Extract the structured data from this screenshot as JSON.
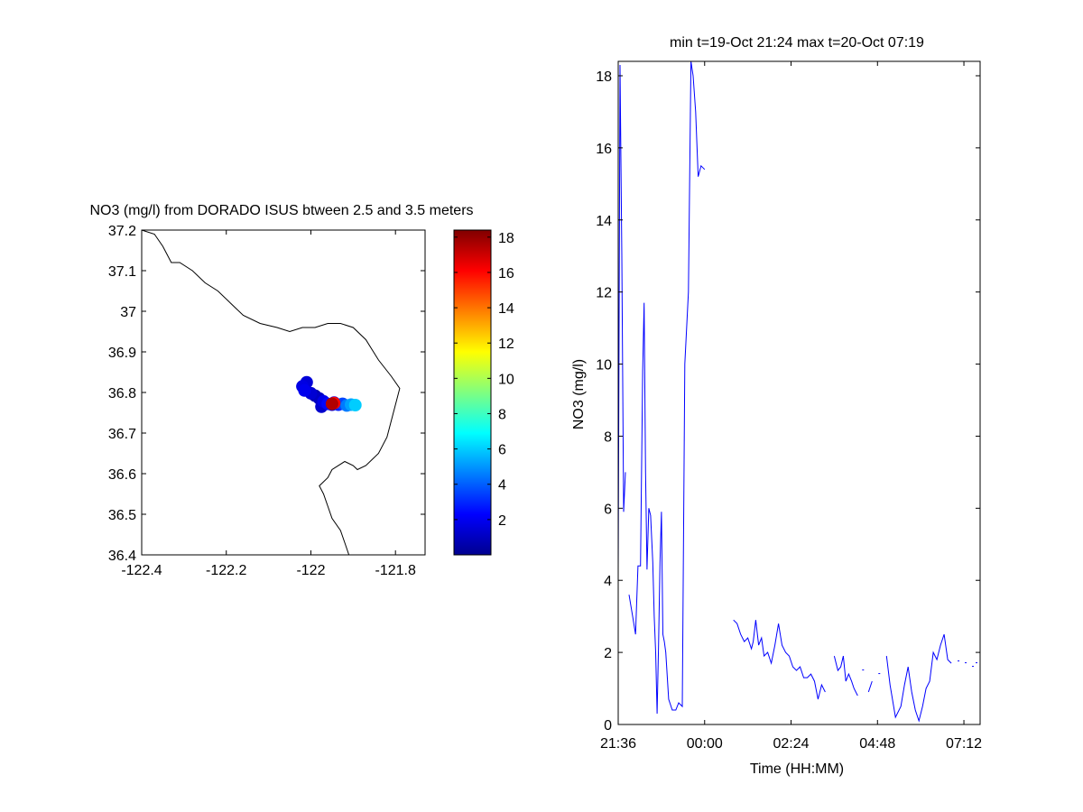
{
  "figure": {
    "background": "#ffffff",
    "axis_color": "#000000"
  },
  "chart_data": [
    {
      "type": "scatter",
      "title": "NO3 (mg/l) from DORADO ISUS btween 2.5 and 3.5 meters",
      "xlabel": "",
      "ylabel": "",
      "xlim": [
        -122.4,
        -121.73
      ],
      "ylim": [
        36.4,
        37.2
      ],
      "xticks": [
        -122.4,
        -122.2,
        -122,
        -121.8
      ],
      "xtick_labels": [
        "-122.4",
        "-122.2",
        "-122",
        "-121.8"
      ],
      "yticks": [
        36.4,
        36.5,
        36.6,
        36.7,
        36.8,
        36.9,
        37,
        37.1,
        37.2
      ],
      "ytick_labels": [
        "36.4",
        "36.5",
        "36.6",
        "36.7",
        "36.8",
        "36.9",
        "37",
        "37.1",
        "37.2"
      ],
      "coastline_color": "#000000",
      "coastline": [
        [
          -122.4,
          37.2
        ],
        [
          -122.37,
          37.19
        ],
        [
          -122.35,
          37.16
        ],
        [
          -122.34,
          37.14
        ],
        [
          -122.33,
          37.12
        ],
        [
          -122.31,
          37.12
        ],
        [
          -122.28,
          37.1
        ],
        [
          -122.25,
          37.07
        ],
        [
          -122.22,
          37.05
        ],
        [
          -122.19,
          37.02
        ],
        [
          -122.16,
          36.99
        ],
        [
          -122.12,
          36.97
        ],
        [
          -122.08,
          36.96
        ],
        [
          -122.05,
          36.95
        ],
        [
          -122.02,
          36.96
        ],
        [
          -121.99,
          36.96
        ],
        [
          -121.96,
          36.97
        ],
        [
          -121.93,
          36.97
        ],
        [
          -121.9,
          36.96
        ],
        [
          -121.87,
          36.93
        ],
        [
          -121.84,
          36.88
        ],
        [
          -121.81,
          36.84
        ],
        [
          -121.79,
          36.81
        ],
        [
          -121.8,
          36.77
        ],
        [
          -121.81,
          36.73
        ],
        [
          -121.82,
          36.69
        ],
        [
          -121.84,
          36.65
        ],
        [
          -121.87,
          36.62
        ],
        [
          -121.89,
          36.61
        ],
        [
          -121.9,
          36.62
        ],
        [
          -121.92,
          36.63
        ],
        [
          -121.95,
          36.61
        ],
        [
          -121.96,
          36.59
        ],
        [
          -121.98,
          36.57
        ],
        [
          -121.97,
          36.55
        ],
        [
          -121.96,
          36.52
        ],
        [
          -121.95,
          36.49
        ],
        [
          -121.93,
          36.46
        ],
        [
          -121.92,
          36.43
        ],
        [
          -121.91,
          36.4
        ]
      ],
      "color_scale": "jet",
      "colorbar": {
        "min": 0,
        "max": 18.4,
        "ticks": [
          2,
          4,
          6,
          8,
          10,
          12,
          14,
          16,
          18
        ],
        "tick_labels": [
          "2",
          "4",
          "6",
          "8",
          "10",
          "12",
          "14",
          "16",
          "18"
        ]
      },
      "points": [
        {
          "x": -122.01,
          "y": 36.825,
          "v": 1.6
        },
        {
          "x": -122.02,
          "y": 36.815,
          "v": 1.8
        },
        {
          "x": -122.015,
          "y": 36.805,
          "v": 2.0
        },
        {
          "x": -122.0,
          "y": 36.798,
          "v": 1.5
        },
        {
          "x": -121.99,
          "y": 36.792,
          "v": 0.8
        },
        {
          "x": -121.98,
          "y": 36.785,
          "v": 1.2
        },
        {
          "x": -121.97,
          "y": 36.778,
          "v": 1.9
        },
        {
          "x": -121.975,
          "y": 36.765,
          "v": 1.4
        },
        {
          "x": -121.96,
          "y": 36.772,
          "v": 2.4
        },
        {
          "x": -121.95,
          "y": 36.77,
          "v": 1.6
        },
        {
          "x": -121.945,
          "y": 36.775,
          "v": 2.2
        },
        {
          "x": -121.935,
          "y": 36.77,
          "v": 2.8
        },
        {
          "x": -121.925,
          "y": 36.772,
          "v": 3.5
        },
        {
          "x": -121.915,
          "y": 36.768,
          "v": 4.5
        },
        {
          "x": -121.905,
          "y": 36.77,
          "v": 5.2
        },
        {
          "x": -121.895,
          "y": 36.769,
          "v": 6.0
        },
        {
          "x": -121.95,
          "y": 36.772,
          "v": 17.5
        },
        {
          "x": -121.945,
          "y": 36.774,
          "v": 16.0
        }
      ]
    },
    {
      "type": "line",
      "title": "min t=19-Oct 21:24 max t=20-Oct 07:19",
      "xlabel": "Time (HH:MM)",
      "ylabel": "NO3 (mg/l)",
      "xlim": [
        -2.4,
        7.65
      ],
      "ylim": [
        0,
        18.4
      ],
      "xticks": [
        -2.4,
        0,
        2.4,
        4.8,
        7.2
      ],
      "xtick_labels": [
        "21:36",
        "00:00",
        "02:24",
        "04:48",
        "07:12"
      ],
      "yticks": [
        0,
        2,
        4,
        6,
        8,
        10,
        12,
        14,
        16,
        18
      ],
      "ytick_labels": [
        "0",
        "2",
        "4",
        "6",
        "8",
        "10",
        "12",
        "14",
        "16",
        "18"
      ],
      "series_color": "#0000ff",
      "segments": [
        [
          [
            -2.6,
            2.0
          ],
          [
            -2.52,
            1.9
          ],
          [
            -2.45,
            1.6
          ],
          [
            -2.4,
            4.3
          ],
          [
            -2.35,
            18.3
          ],
          [
            -2.3,
            13.0
          ],
          [
            -2.25,
            5.9
          ],
          [
            -2.2,
            7.0
          ]
        ],
        [
          [
            -2.1,
            3.6
          ],
          [
            -2.0,
            3.0
          ],
          [
            -1.92,
            2.5
          ],
          [
            -1.85,
            4.4
          ],
          [
            -1.78,
            4.4
          ],
          [
            -1.72,
            9.8
          ],
          [
            -1.68,
            11.7
          ],
          [
            -1.64,
            7.0
          ],
          [
            -1.6,
            4.3
          ],
          [
            -1.55,
            6.0
          ],
          [
            -1.5,
            5.8
          ],
          [
            -1.44,
            4.5
          ],
          [
            -1.4,
            3.0
          ],
          [
            -1.36,
            2.0
          ],
          [
            -1.32,
            0.3
          ],
          [
            -1.28,
            2.2
          ],
          [
            -1.24,
            4.5
          ],
          [
            -1.2,
            5.9
          ],
          [
            -1.16,
            2.5
          ],
          [
            -1.12,
            2.3
          ],
          [
            -1.08,
            2.0
          ],
          [
            -1.0,
            0.7
          ],
          [
            -0.9,
            0.4
          ],
          [
            -0.8,
            0.4
          ],
          [
            -0.72,
            0.6
          ],
          [
            -0.62,
            0.5
          ],
          [
            -0.55,
            10.0
          ],
          [
            -0.45,
            12.0
          ],
          [
            -0.38,
            18.4
          ],
          [
            -0.32,
            18.0
          ],
          [
            -0.25,
            17.0
          ],
          [
            -0.18,
            15.2
          ],
          [
            -0.1,
            15.5
          ],
          [
            0.0,
            15.4
          ]
        ],
        [
          [
            0.8,
            2.9
          ],
          [
            0.9,
            2.8
          ],
          [
            1.0,
            2.5
          ],
          [
            1.1,
            2.3
          ],
          [
            1.2,
            2.4
          ],
          [
            1.3,
            2.1
          ],
          [
            1.35,
            2.3
          ],
          [
            1.42,
            2.9
          ],
          [
            1.5,
            2.2
          ],
          [
            1.58,
            2.4
          ],
          [
            1.65,
            1.9
          ],
          [
            1.75,
            2.0
          ],
          [
            1.85,
            1.7
          ],
          [
            1.95,
            2.2
          ],
          [
            2.05,
            2.8
          ],
          [
            2.15,
            2.2
          ],
          [
            2.25,
            2.0
          ],
          [
            2.35,
            1.9
          ],
          [
            2.45,
            1.6
          ],
          [
            2.55,
            1.5
          ],
          [
            2.65,
            1.6
          ],
          [
            2.75,
            1.3
          ],
          [
            2.85,
            1.3
          ],
          [
            2.95,
            1.4
          ],
          [
            3.05,
            1.2
          ],
          [
            3.15,
            0.7
          ],
          [
            3.25,
            1.1
          ],
          [
            3.35,
            0.9
          ]
        ],
        [
          [
            3.6,
            1.9
          ],
          [
            3.7,
            1.5
          ],
          [
            3.78,
            1.6
          ],
          [
            3.85,
            1.9
          ],
          [
            3.92,
            1.2
          ],
          [
            4.0,
            1.4
          ],
          [
            4.08,
            1.2
          ],
          [
            4.15,
            1.0
          ],
          [
            4.25,
            0.8
          ]
        ],
        [
          [
            4.55,
            0.9
          ],
          [
            4.65,
            1.2
          ]
        ],
        [
          [
            5.05,
            1.9
          ],
          [
            5.15,
            1.1
          ],
          [
            5.3,
            0.2
          ],
          [
            5.45,
            0.5
          ],
          [
            5.55,
            1.1
          ],
          [
            5.65,
            1.6
          ],
          [
            5.75,
            0.9
          ],
          [
            5.85,
            0.4
          ],
          [
            5.95,
            0.1
          ],
          [
            6.05,
            0.5
          ],
          [
            6.15,
            1.0
          ],
          [
            6.25,
            1.2
          ],
          [
            6.35,
            2.0
          ],
          [
            6.45,
            1.8
          ],
          [
            6.55,
            2.2
          ],
          [
            6.65,
            2.5
          ],
          [
            6.75,
            1.8
          ],
          [
            6.85,
            1.7
          ]
        ]
      ],
      "dots": [
        [
          4.4,
          1.5
        ],
        [
          4.85,
          1.4
        ],
        [
          7.05,
          1.75
        ],
        [
          7.25,
          1.7
        ],
        [
          7.45,
          1.6
        ],
        [
          7.55,
          1.7
        ]
      ]
    }
  ]
}
